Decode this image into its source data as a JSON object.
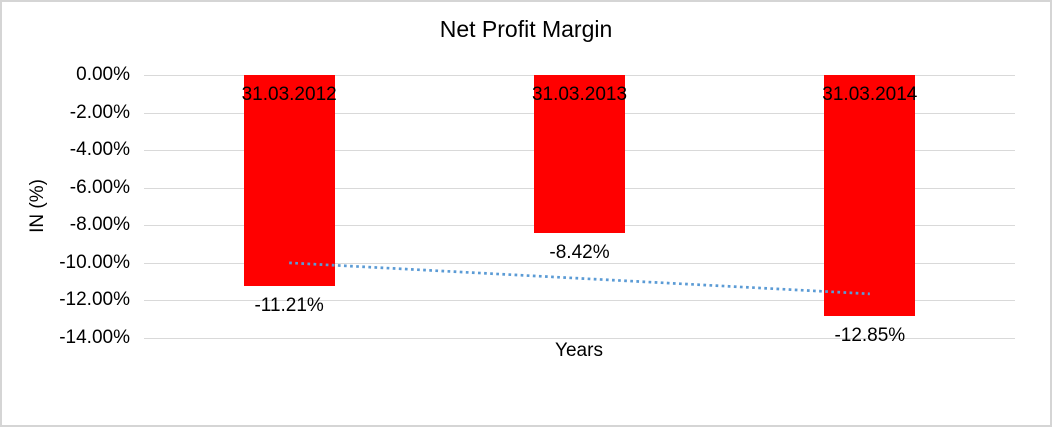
{
  "chart_data": {
    "type": "bar",
    "title": "Net Profit Margin",
    "xlabel": "Years",
    "ylabel": "IN (%)",
    "categories": [
      "31.03.2012",
      "31.03.2013",
      "31.03.2014"
    ],
    "values": [
      -11.21,
      -8.42,
      -12.85
    ],
    "value_labels": [
      "-11.21%",
      "-8.42%",
      "-12.85%"
    ],
    "ylim": [
      -14,
      0
    ],
    "yticks": [
      {
        "value": 0,
        "label": "0.00%"
      },
      {
        "value": -2,
        "label": "-2.00%"
      },
      {
        "value": -4,
        "label": "-4.00%"
      },
      {
        "value": -6,
        "label": "-6.00%"
      },
      {
        "value": -8,
        "label": "-8.00%"
      },
      {
        "value": -10,
        "label": "-10.00%"
      },
      {
        "value": -12,
        "label": "-12.00%"
      },
      {
        "value": -14,
        "label": "-14.00%"
      }
    ],
    "grid": true,
    "legend_position": "none",
    "trendline": {
      "type": "linear",
      "style": "dotted",
      "start_value": -10.0,
      "end_value": -11.65
    },
    "colors": {
      "bar": "#ff0000",
      "trendline": "#5b9bd5",
      "gridline": "#d9d9d9",
      "text": "#000000",
      "chart_border": "#d5d5d5"
    }
  }
}
